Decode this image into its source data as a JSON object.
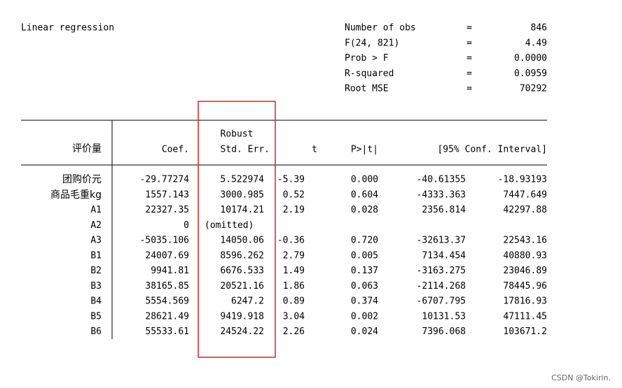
{
  "header": {
    "title": "Linear regression"
  },
  "stats": [
    {
      "label": "Number of obs",
      "eq": "=",
      "value": "846"
    },
    {
      "label": "F(24, 821)",
      "eq": "=",
      "value": "4.49"
    },
    {
      "label": "Prob > F",
      "eq": "=",
      "value": "0.0000"
    },
    {
      "label": "R-squared",
      "eq": "=",
      "value": "0.0959"
    },
    {
      "label": "Root MSE",
      "eq": "=",
      "value": "70292"
    }
  ],
  "table": {
    "depvar": "评价量",
    "columns": {
      "coef": "Coef.",
      "se_top": "Robust",
      "se": "Std. Err.",
      "t": "t",
      "p": "P>|t|",
      "ci": "[95% Conf. Interval]"
    },
    "rows": [
      {
        "name": "团购价元",
        "coef": "-29.77274",
        "se": "5.522974",
        "t": "-5.39",
        "p": "0.000",
        "lo": "-40.61355",
        "hi": "-18.93193"
      },
      {
        "name": "商品毛重kg",
        "coef": "1557.143",
        "se": "3000.985",
        "t": "0.52",
        "p": "0.604",
        "lo": "-4333.363",
        "hi": "7447.649"
      },
      {
        "name": "A1",
        "coef": "22327.35",
        "se": "10174.21",
        "t": "2.19",
        "p": "0.028",
        "lo": "2356.814",
        "hi": "42297.88"
      },
      {
        "name": "A2",
        "coef": "0",
        "omitted": "(omitted)"
      },
      {
        "name": "A3",
        "coef": "-5035.106",
        "se": "14050.06",
        "t": "-0.36",
        "p": "0.720",
        "lo": "-32613.37",
        "hi": "22543.16"
      },
      {
        "name": "B1",
        "coef": "24007.69",
        "se": "8596.262",
        "t": "2.79",
        "p": "0.005",
        "lo": "7134.454",
        "hi": "40880.93"
      },
      {
        "name": "B2",
        "coef": "9941.81",
        "se": "6676.533",
        "t": "1.49",
        "p": "0.137",
        "lo": "-3163.275",
        "hi": "23046.89"
      },
      {
        "name": "B3",
        "coef": "38165.85",
        "se": "20521.16",
        "t": "1.86",
        "p": "0.063",
        "lo": "-2114.268",
        "hi": "78445.96"
      },
      {
        "name": "B4",
        "coef": "5554.569",
        "se": "6247.2",
        "t": "0.89",
        "p": "0.374",
        "lo": "-6707.795",
        "hi": "17816.93"
      },
      {
        "name": "B5",
        "coef": "28621.49",
        "se": "9419.918",
        "t": "3.04",
        "p": "0.002",
        "lo": "10131.53",
        "hi": "47111.45"
      },
      {
        "name": "B6",
        "coef": "55533.61",
        "se": "24524.22",
        "t": "2.26",
        "p": "0.024",
        "lo": "7396.068",
        "hi": "103671.2"
      }
    ]
  },
  "watermark": "CSDN @Tokirin."
}
